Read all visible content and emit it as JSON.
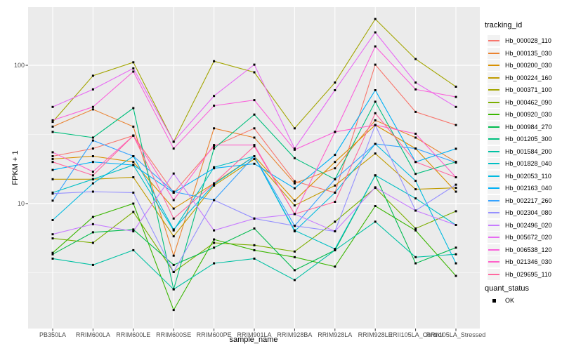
{
  "figure": {
    "colors": {
      "panel_bg": "#EBEBEB",
      "grid": "#FFFFFF",
      "legend_key_bg": "#F2F2F2",
      "tick_mark": "#333333",
      "tick_text": "#4D4D4D",
      "point": "#000000"
    }
  },
  "chart_data": {
    "type": "line",
    "title": "",
    "xlabel": "sample_name",
    "ylabel": "FPKM + 1",
    "y_scale": "log10",
    "ylim": [
      1.3,
      264
    ],
    "yticks": [
      100,
      10
    ],
    "grid": true,
    "legend_position": "right",
    "legend_title": "tracking_id",
    "quant_legend": {
      "title": "quant_status",
      "items": [
        "OK"
      ]
    },
    "point_shape": "filled-square",
    "categories": [
      "PB350LA",
      "RRIM600LA",
      "RRIM600LE",
      "RRIM600SE",
      "RRIM600PE",
      "RRIM901LA",
      "RRIM928BA",
      "RRIM928LA",
      "RRIM928LE",
      "RRII105LA_Control",
      "RRII105LA_Stressed"
    ],
    "series": [
      {
        "name": "Hb_000028_110",
        "color": "#F8766D",
        "values": [
          22,
          25,
          31,
          12,
          26,
          35,
          14.5,
          12,
          101,
          46,
          37
        ]
      },
      {
        "name": "Hb_000135_030",
        "color": "#EA8331",
        "values": [
          36,
          48,
          36,
          4.2,
          35,
          30,
          14,
          18,
          40,
          30,
          20
        ]
      },
      {
        "name": "Hb_000200_030",
        "color": "#D89000",
        "values": [
          21,
          22,
          20,
          9.2,
          14,
          22,
          10.5,
          20,
          37,
          25,
          12.2
        ]
      },
      {
        "name": "Hb_000224_160",
        "color": "#C09B00",
        "values": [
          15,
          15,
          15.5,
          5.8,
          13.5,
          21,
          9.7,
          13.5,
          23,
          12.7,
          13
        ]
      },
      {
        "name": "Hb_000371_100",
        "color": "#A3A500",
        "values": [
          39,
          84,
          105,
          28,
          107,
          89,
          35,
          75,
          216,
          111,
          70
        ]
      },
      {
        "name": "Hb_000462_090",
        "color": "#7CAE00",
        "values": [
          5.6,
          5.2,
          8.7,
          3.2,
          5.2,
          5.0,
          4.5,
          7.4,
          13,
          6.6,
          8.8
        ]
      },
      {
        "name": "Hb_000920_030",
        "color": "#39B600",
        "values": [
          4.4,
          8.0,
          10,
          1.7,
          5.5,
          4.6,
          4.1,
          3.5,
          9.6,
          6.4,
          3.0
        ]
      },
      {
        "name": "Hb_000984_270",
        "color": "#00BB4E",
        "values": [
          4.3,
          6.2,
          6.5,
          3.6,
          4.8,
          6.6,
          3.3,
          4.6,
          16,
          3.7,
          4.8
        ]
      },
      {
        "name": "Hb_001205_300",
        "color": "#00BF7D",
        "values": [
          33,
          30,
          49,
          2.4,
          25,
          44,
          21.3,
          15,
          54.5,
          16.4,
          20
        ]
      },
      {
        "name": "Hb_001584_200",
        "color": "#00C1A3",
        "values": [
          4.0,
          3.6,
          4.6,
          2.4,
          3.7,
          4.0,
          2.8,
          4.6,
          7.4,
          4.1,
          4.3
        ]
      },
      {
        "name": "Hb_001828_040",
        "color": "#00BFC4",
        "values": [
          12,
          15,
          19,
          6.4,
          18.3,
          22,
          6.4,
          4.7,
          16,
          10.9,
          7.0
        ]
      },
      {
        "name": "Hb_002053_110",
        "color": "#00BAE0",
        "values": [
          7.6,
          14,
          22,
          6.5,
          13.8,
          22,
          6.3,
          12,
          27,
          14.6,
          3.7
        ]
      },
      {
        "name": "Hb_002163_040",
        "color": "#00B0F6",
        "values": [
          17.5,
          20,
          19,
          12,
          18,
          19.4,
          12.9,
          22.5,
          66,
          20,
          24.9
        ]
      },
      {
        "name": "Hb_002217_260",
        "color": "#35A2FF",
        "values": [
          10.5,
          28.6,
          22,
          12.2,
          10.6,
          22,
          6.9,
          15,
          27,
          25,
          19.8
        ]
      },
      {
        "name": "Hb_002304_080",
        "color": "#9590FF",
        "values": [
          11.8,
          12.2,
          12,
          3.2,
          10.6,
          7.8,
          6.9,
          6.3,
          37,
          8.9,
          13.7
        ]
      },
      {
        "name": "Hb_002496_020",
        "color": "#C77CFF",
        "values": [
          6.0,
          7.1,
          6.3,
          16.5,
          6.4,
          7.8,
          8.4,
          6.3,
          13.1,
          8.9,
          7.0
        ]
      },
      {
        "name": "Hb_005672_020",
        "color": "#E76BF3",
        "values": [
          50,
          67,
          95,
          28,
          60,
          101,
          25,
          66,
          173,
          75,
          50
        ]
      },
      {
        "name": "Hb_006538_120",
        "color": "#FA62DB",
        "values": [
          40,
          50,
          90,
          25,
          51,
          56,
          24.5,
          33,
          137,
          67,
          59
        ]
      },
      {
        "name": "Hb_021346_030",
        "color": "#FF61C9",
        "values": [
          23.5,
          17,
          31,
          10.6,
          26.5,
          26.5,
          8.4,
          33,
          37,
          32,
          15.5
        ]
      },
      {
        "name": "Hb_029695_110",
        "color": "#FF689E",
        "values": [
          20,
          16,
          31,
          7.8,
          14,
          26,
          8.4,
          10.3,
          45,
          20,
          15.5
        ]
      }
    ]
  }
}
